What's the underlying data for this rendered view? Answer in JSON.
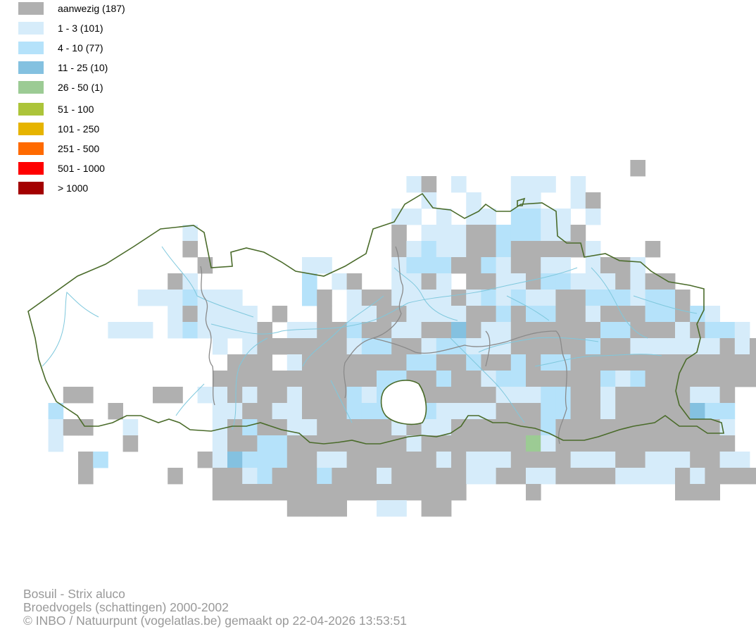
{
  "legend": {
    "items": [
      {
        "label": "aanwezig (187)",
        "color": "#b0b0b0"
      },
      {
        "label": "1 - 3 (101)",
        "color": "#d6ecfa"
      },
      {
        "label": "4 - 10 (77)",
        "color": "#b5e2fa"
      },
      {
        "label": "11 - 25 (10)",
        "color": "#84c1e0"
      },
      {
        "label": "26 - 50 (1)",
        "color": "#9ccb94"
      },
      {
        "label": "51 - 100",
        "color": "#acc43a"
      },
      {
        "label": "101 - 250",
        "color": "#e6b400"
      },
      {
        "label": "251 - 500",
        "color": "#ff6a00"
      },
      {
        "label": "501 - 1000",
        "color": "#ff0000"
      },
      {
        "label": "> 1000",
        "color": "#a30000"
      }
    ]
  },
  "map": {
    "border_color": "#4a6b2a",
    "province_border_color": "#8a8a8a",
    "river_color": "#7fc8dd"
  },
  "credits": {
    "species": "Bosuil - Strix aluco",
    "dataset": "Broedvogels (schattingen) 2000-2002",
    "copyright": "© INBO / Natuurpunt (vogelatlas.be) gemaakt op 22-04-2026 13:53:51"
  }
}
